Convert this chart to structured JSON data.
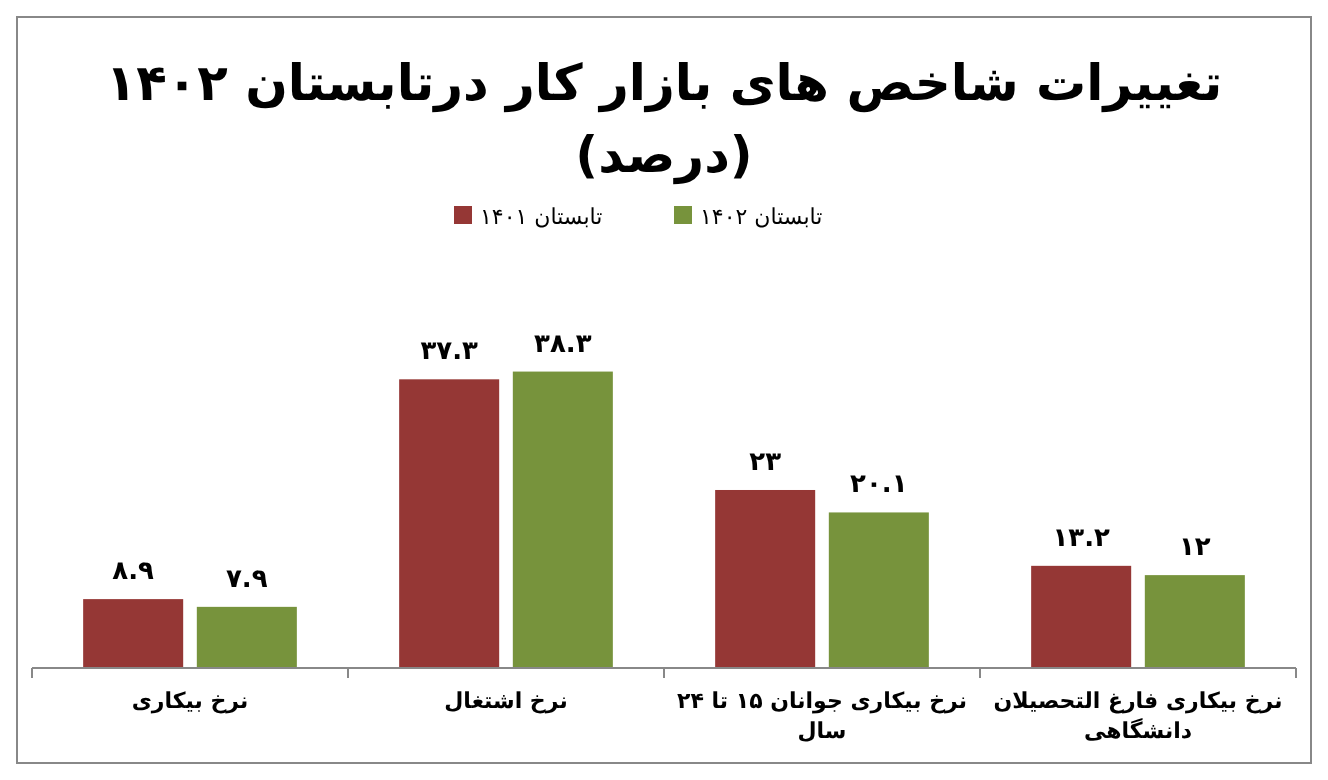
{
  "chart_data": {
    "type": "bar",
    "title": "تغییرات شاخص های بازار کار درتابستان ۱۴۰۲",
    "subtitle": "(درصد)",
    "categories": [
      "نرخ بیکاری",
      "نرخ اشتغال",
      "نرخ بیکاری جوانان ۱۵ تا ۲۴ سال",
      "نرخ بیکاری فارغ التحصیلان دانشگاهی"
    ],
    "series": [
      {
        "name": "تابستان ۱۴۰۱",
        "color": "#953735",
        "values": [
          8.9,
          37.3,
          23,
          13.2
        ],
        "value_labels": [
          "۸.۹",
          "۳۷.۳",
          "۲۳",
          "۱۳.۲"
        ]
      },
      {
        "name": "تابستان ۱۴۰۲",
        "color": "#77933c",
        "values": [
          7.9,
          38.3,
          20.1,
          12
        ],
        "value_labels": [
          "۷.۹",
          "۳۸.۳",
          "۲۰.۱",
          "۱۲"
        ]
      }
    ],
    "legend": "top",
    "grid": false
  }
}
